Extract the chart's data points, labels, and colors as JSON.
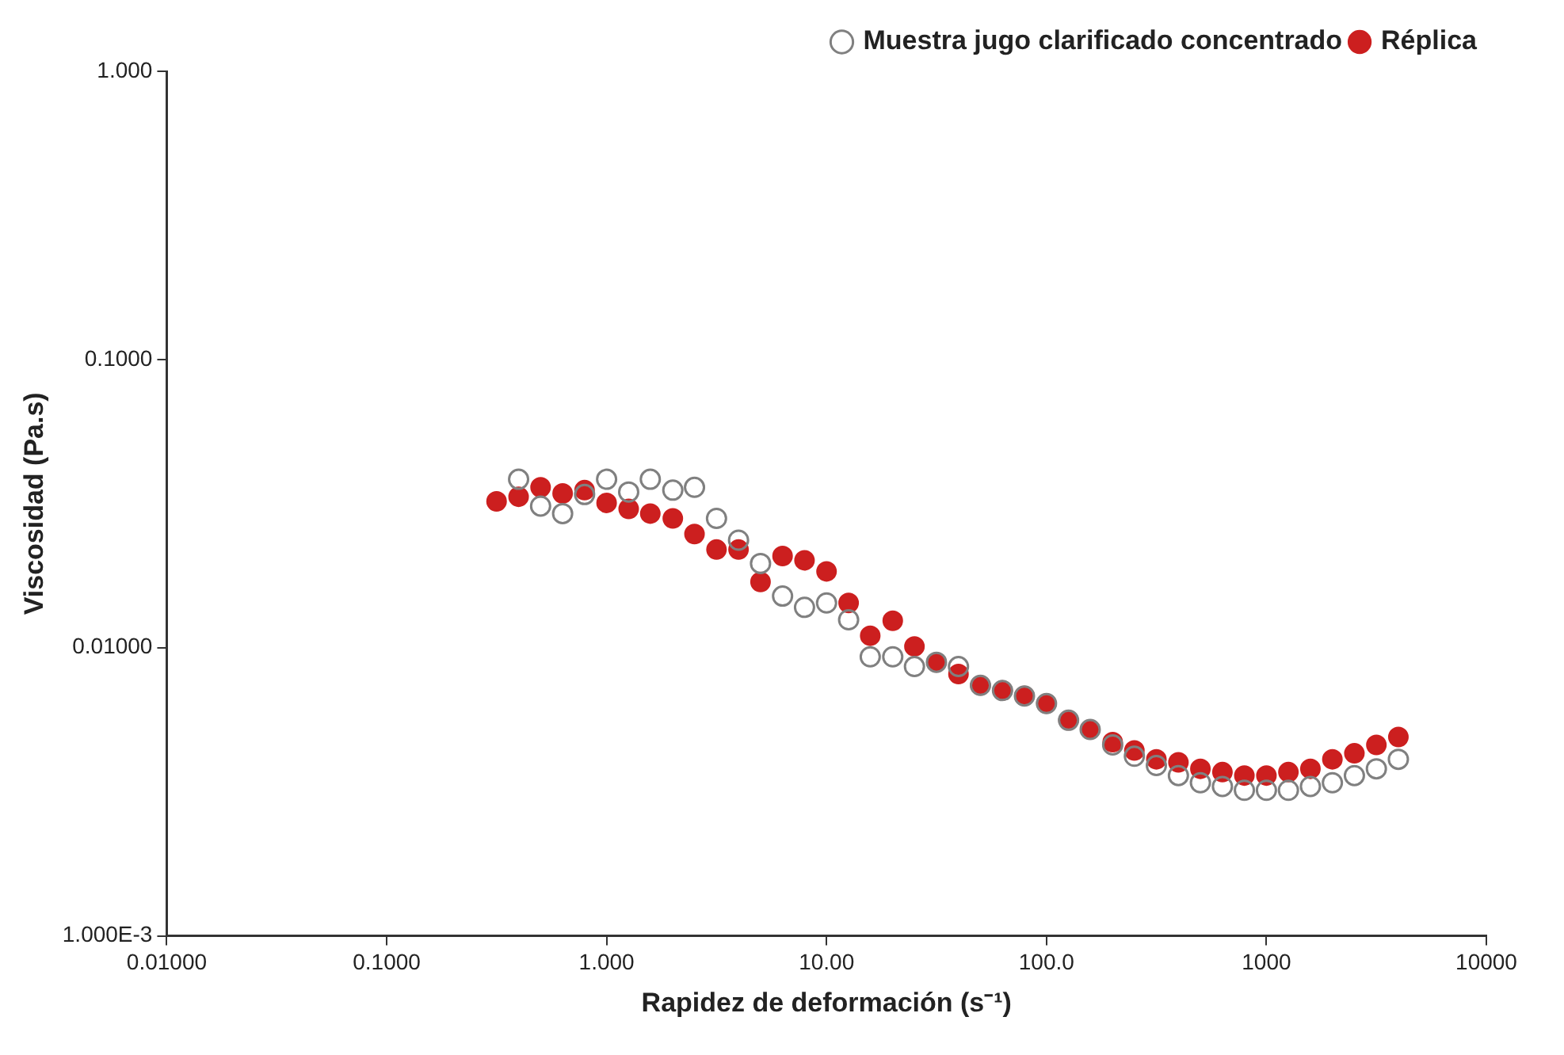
{
  "chart_data": {
    "type": "scatter",
    "xlabel": "Rapidez de deformación (s⁻¹)",
    "ylabel": "Viscosidad (Pa.s)",
    "log": "xy",
    "grid": false,
    "legend": "top right",
    "marker": "circle",
    "xlim": [
      0.01,
      10000
    ],
    "xticks": [
      {
        "value": 0.01,
        "label": "0.01000"
      },
      {
        "value": 0.1,
        "label": "0.1000"
      },
      {
        "value": 1,
        "label": "1.000"
      },
      {
        "value": 10,
        "label": "10.00"
      },
      {
        "value": 100,
        "label": "100.0"
      },
      1000,
      10000
    ],
    "ylim": [
      0.001,
      1
    ],
    "yticks": [
      {
        "value": 0.001,
        "label": "1.000E-3"
      },
      {
        "value": 0.01,
        "label": "0.01000"
      },
      {
        "value": 0.1,
        "label": "0.1000"
      },
      {
        "value": 1,
        "label": "1.000"
      }
    ],
    "series": [
      {
        "name": "Muestra jugo clarificado concentrado",
        "color": "#808080",
        "x": [
          0.398,
          0.501,
          0.631,
          0.794,
          1.0,
          1.26,
          1.58,
          2.0,
          2.51,
          3.16,
          3.98,
          5.01,
          6.31,
          7.94,
          10,
          12.6,
          15.8,
          20,
          25.1,
          31.6,
          39.8,
          50.1,
          63.1,
          79.4,
          100,
          126,
          158,
          200,
          251,
          316,
          398,
          501,
          631,
          794,
          1000,
          1259,
          1585,
          1995,
          2512,
          3162,
          3981
        ],
        "values": [
          0.0384,
          0.031,
          0.0292,
          0.034,
          0.0384,
          0.0347,
          0.0384,
          0.0352,
          0.036,
          0.0281,
          0.0236,
          0.0196,
          0.0151,
          0.0138,
          0.0143,
          0.0125,
          0.0093,
          0.0093,
          0.0086,
          0.0089,
          0.0086,
          0.0074,
          0.0071,
          0.0068,
          0.0064,
          0.0056,
          0.0052,
          0.0046,
          0.0042,
          0.0039,
          0.0036,
          0.0034,
          0.0033,
          0.0032,
          0.0032,
          0.0032,
          0.0033,
          0.0034,
          0.0036,
          0.0038,
          0.0041
        ]
      },
      {
        "name": "Réplica",
        "color": "#cc1f1f",
        "x": [
          0.316,
          0.398,
          0.501,
          0.631,
          0.794,
          1.0,
          1.26,
          1.58,
          2.0,
          2.51,
          3.16,
          3.98,
          5.01,
          6.31,
          7.94,
          10,
          12.6,
          15.8,
          20,
          25.1,
          31.6,
          39.8,
          50.1,
          63.1,
          79.4,
          100,
          126,
          158,
          200,
          251,
          316,
          398,
          501,
          631,
          794,
          1000,
          1259,
          1585,
          1995,
          2512,
          3162,
          3981
        ],
        "values": [
          0.0322,
          0.0334,
          0.036,
          0.0343,
          0.0352,
          0.0318,
          0.0303,
          0.0292,
          0.0281,
          0.0248,
          0.0219,
          0.0219,
          0.0169,
          0.0208,
          0.0201,
          0.0184,
          0.0143,
          0.011,
          0.0124,
          0.0101,
          0.0089,
          0.0081,
          0.0074,
          0.0071,
          0.0068,
          0.0064,
          0.0056,
          0.0052,
          0.0047,
          0.0044,
          0.0041,
          0.004,
          0.0038,
          0.0037,
          0.0036,
          0.0036,
          0.0037,
          0.0038,
          0.0041,
          0.0043,
          0.0046,
          0.0049
        ]
      }
    ]
  }
}
